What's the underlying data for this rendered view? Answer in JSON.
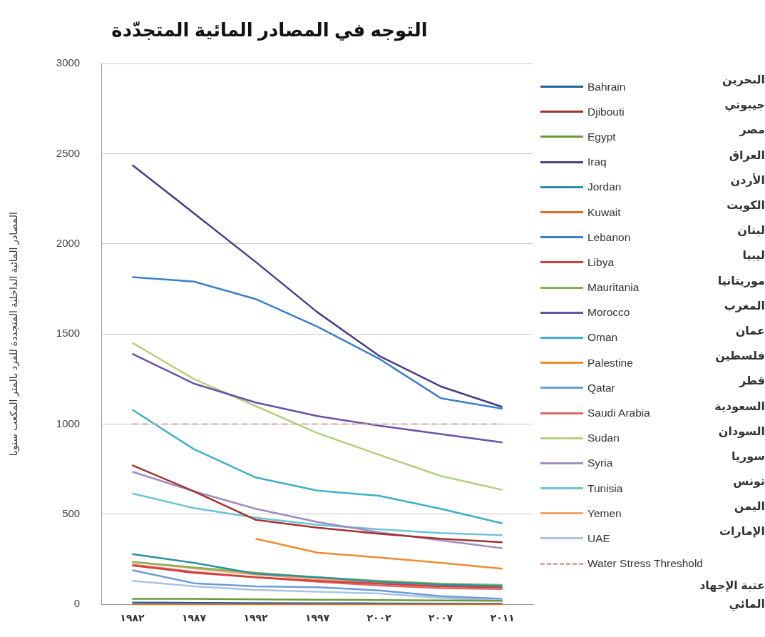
{
  "chart_data": {
    "type": "line",
    "title": "التوجه في المصادر المائية المتجدّدة",
    "ylabel": "المصادر المائية الداخلية المتجددة للفرد بالمتر المكعب سنويا",
    "categories": [
      "١٩٨٢",
      "١٩٨٧",
      "١٩٩٢",
      "١٩٩٧",
      "٢٠٠٢",
      "٢٠٠٧",
      "٢٠١١"
    ],
    "ylim": [
      0,
      3000
    ],
    "yticks": [
      0,
      500,
      1000,
      1500,
      2000,
      2500,
      3000
    ],
    "grid": "y",
    "legend": "right",
    "marker": "none",
    "line_style": "solid",
    "series": [
      {
        "name": "Bahrain",
        "color": "#1f5fa0",
        "values": [
          10,
          8,
          7,
          6,
          5,
          4,
          3
        ]
      },
      {
        "name": "Djibouti",
        "color": "#a3312e",
        "values": [
          772,
          627,
          469,
          425,
          392,
          364,
          344
        ]
      },
      {
        "name": "Egypt",
        "color": "#6a9a3a",
        "values": [
          30,
          30,
          28,
          26,
          24,
          22,
          20
        ]
      },
      {
        "name": "Iraq",
        "color": "#4b3b84",
        "values": [
          2438,
          2170,
          1900,
          1621,
          1379,
          1209,
          1095
        ]
      },
      {
        "name": "Jordan",
        "color": "#2b8fa5",
        "values": [
          279,
          230,
          170,
          150,
          125,
          110,
          101
        ]
      },
      {
        "name": "Kuwait",
        "color": "#d9722a",
        "values": [
          0,
          0,
          0,
          0,
          0,
          0,
          0
        ]
      },
      {
        "name": "Lebanon",
        "color": "#3a7fc8",
        "values": [
          1815,
          1791,
          1694,
          1541,
          1363,
          1144,
          1085
        ]
      },
      {
        "name": "Libya",
        "color": "#d0403c",
        "values": [
          215,
          175,
          150,
          130,
          115,
          100,
          95
        ]
      },
      {
        "name": "Mauritania",
        "color": "#88b052",
        "values": [
          235,
          205,
          175,
          150,
          130,
          115,
          108
        ]
      },
      {
        "name": "Morocco",
        "color": "#6852a8",
        "values": [
          1390,
          1225,
          1120,
          1045,
          991,
          945,
          898
        ]
      },
      {
        "name": "Oman",
        "color": "#3cb0c8",
        "values": [
          1080,
          861,
          704,
          631,
          602,
          530,
          449
        ]
      },
      {
        "name": "Palestine",
        "color": "#f08b2c",
        "values": [
          null,
          null,
          364,
          287,
          260,
          230,
          198
        ]
      },
      {
        "name": "Qatar",
        "color": "#6b9bd6",
        "values": [
          190,
          117,
          100,
          95,
          77,
          45,
          30
        ]
      },
      {
        "name": "Saudi Arabia",
        "color": "#e06666",
        "values": [
          220,
          180,
          150,
          125,
          105,
          90,
          85
        ]
      },
      {
        "name": "Sudan",
        "color": "#b5d07c",
        "values": [
          1452,
          1250,
          1100,
          950,
          830,
          712,
          635
        ]
      },
      {
        "name": "Syria",
        "color": "#9c8cc4",
        "values": [
          736,
          627,
          530,
          457,
          400,
          355,
          311
        ]
      },
      {
        "name": "Tunisia",
        "color": "#6cc4d8",
        "values": [
          615,
          534,
          481,
          441,
          416,
          396,
          384
        ]
      },
      {
        "name": "Yemen",
        "color": "#f4a66c",
        "values": [
          235,
          200,
          165,
          140,
          120,
          105,
          95
        ]
      },
      {
        "name": "UAE",
        "color": "#a7c3e4",
        "values": [
          130,
          100,
          80,
          70,
          60,
          35,
          20
        ]
      }
    ],
    "ref_lines": [
      {
        "axis": "y",
        "value": 1000,
        "label": "Water Stress Threshold",
        "color": "#d8a8a8",
        "line_style": "dashed"
      }
    ],
    "annotations": [
      "البحرين",
      "جيبوتي",
      "مصر",
      "العراق",
      "الأردن",
      "الكويت",
      "لبنان",
      "ليبيا",
      "موريتانيا",
      "المغرب",
      "عمان",
      "فلسطين",
      "قطر",
      "السعودية",
      "السودان",
      "سوريا",
      "تونس",
      "اليمن",
      "الإمارات",
      "عتبة الإجهاد المائي"
    ]
  }
}
